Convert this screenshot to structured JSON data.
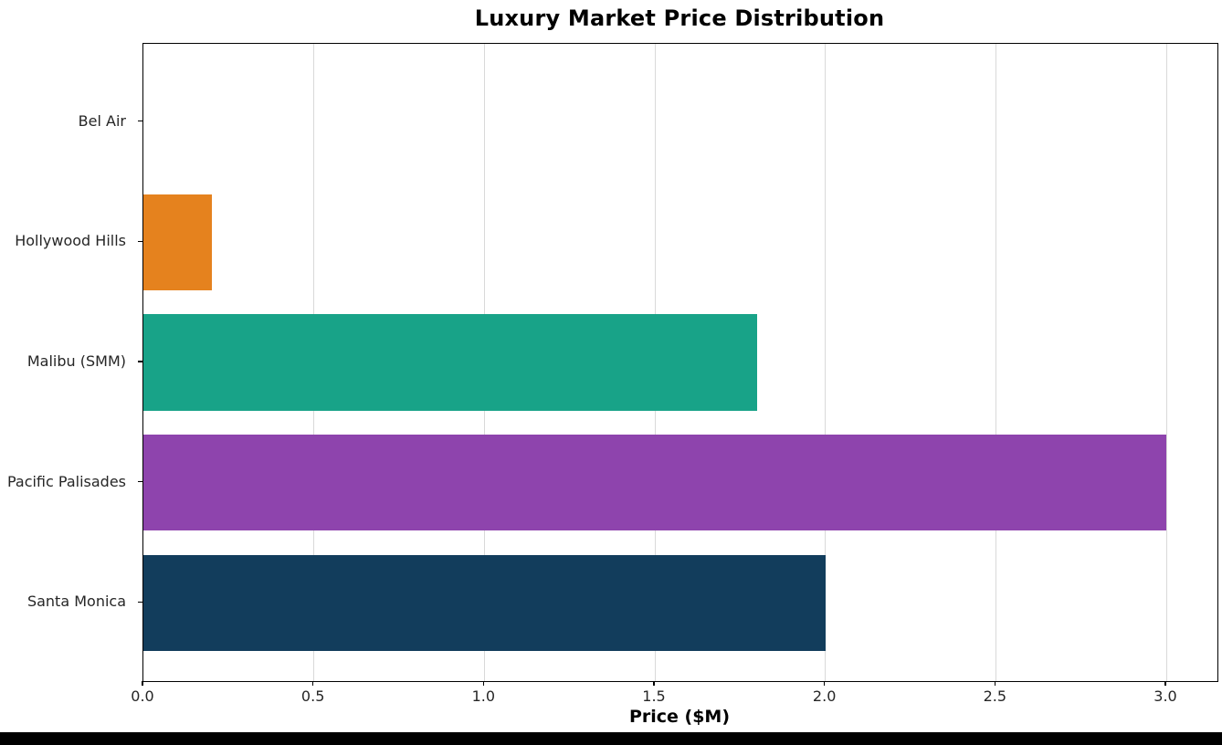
{
  "chart_data": {
    "type": "bar",
    "orientation": "horizontal",
    "title": "Luxury Market Price Distribution",
    "xlabel": "Price ($M)",
    "categories": [
      "Bel Air",
      "Hollywood Hills",
      "Malibu (SMM)",
      "Pacific Palisades",
      "Santa Monica"
    ],
    "values": [
      0,
      0.2,
      1.8,
      3.0,
      2.0
    ],
    "colors": [
      null,
      "#e5821e",
      "#18a388",
      "#8e44ad",
      "#123d5c"
    ],
    "xlim": [
      0,
      3.15
    ],
    "x_ticks": [
      0.0,
      0.5,
      1.0,
      1.5,
      2.0,
      2.5,
      3.0
    ],
    "x_tick_labels": [
      "0.0",
      "0.5",
      "1.0",
      "1.5",
      "2.0",
      "2.5",
      "3.0"
    ],
    "grid": "vertical",
    "grid_color": "#d9d9d9",
    "bar_height_frac": 0.8,
    "axis_text_color": "#262626",
    "spine_color": "#000000"
  }
}
